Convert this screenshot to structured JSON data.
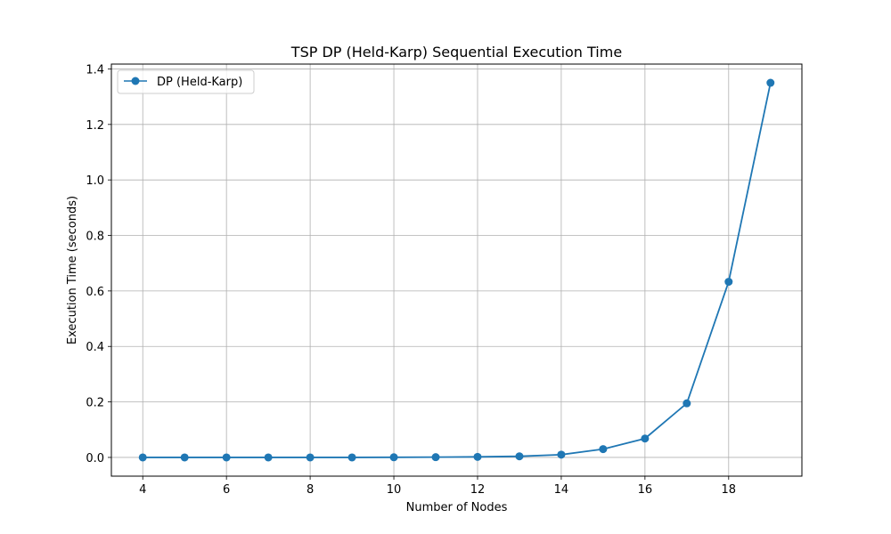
{
  "chart_data": {
    "type": "line",
    "title": "TSP DP (Held-Karp) Sequential Execution Time",
    "xlabel": "Number of Nodes",
    "ylabel": "Execution Time (seconds)",
    "xlim": [
      3.25,
      19.75
    ],
    "ylim": [
      -0.0675,
      1.4175
    ],
    "xticks": [
      4,
      6,
      8,
      10,
      12,
      14,
      16,
      18
    ],
    "yticks": [
      0.0,
      0.2,
      0.4,
      0.6,
      0.8,
      1.0,
      1.2,
      1.4
    ],
    "xtick_labels": [
      "4",
      "6",
      "8",
      "10",
      "12",
      "14",
      "16",
      "18"
    ],
    "ytick_labels": [
      "0.0",
      "0.2",
      "0.4",
      "0.6",
      "0.8",
      "1.0",
      "1.2",
      "1.4"
    ],
    "grid": true,
    "legend_position": "upper-left",
    "series": [
      {
        "name": "DP (Held-Karp)",
        "color": "#1f77b4",
        "marker": "circle",
        "x": [
          4,
          5,
          6,
          7,
          8,
          9,
          10,
          11,
          12,
          13,
          14,
          15,
          16,
          17,
          18,
          19
        ],
        "y": [
          0.0,
          0.0,
          0.0,
          0.0,
          0.0,
          0.0,
          0.0005,
          0.001,
          0.002,
          0.004,
          0.01,
          0.03,
          0.068,
          0.195,
          0.633,
          1.35
        ]
      }
    ]
  }
}
